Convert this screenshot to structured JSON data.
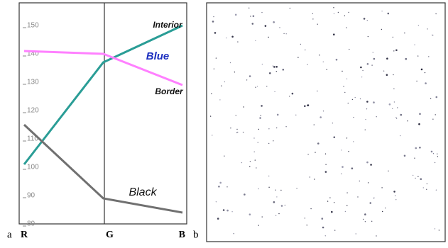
{
  "chart_data": {
    "type": "line",
    "categories": [
      "R",
      "G",
      "B"
    ],
    "series": [
      {
        "name": "Interior",
        "color": "#2a9d96",
        "values": [
          101,
          137,
          150
        ]
      },
      {
        "name": "Border",
        "color": "#ff80ff",
        "values": [
          141,
          140,
          129
        ]
      },
      {
        "name": "Black",
        "color": "#707070",
        "values": [
          115,
          89,
          84
        ]
      }
    ],
    "annotations": [
      "Blue"
    ],
    "ylim": [
      80,
      158
    ],
    "yticks": [
      80,
      90,
      100,
      110,
      120,
      130,
      140,
      150
    ],
    "panel_labels": [
      "a",
      "b"
    ]
  }
}
